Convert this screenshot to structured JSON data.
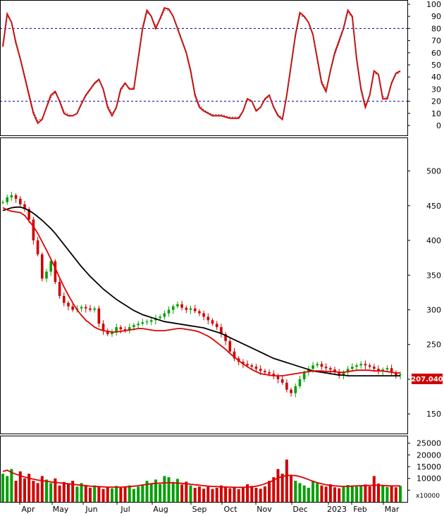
{
  "chart_data": {
    "type": "stock-chart",
    "months": [
      "Apr",
      "May",
      "Jun",
      "Jul",
      "Aug",
      "Sep",
      "Oct",
      "Nov",
      "Dec",
      "2023",
      "Feb",
      "Mar"
    ],
    "last_price_label": "207.040",
    "volume_unit_label": "x10000",
    "oscillator": {
      "ylim": [
        0,
        100
      ],
      "ticks": [
        0,
        10,
        20,
        30,
        40,
        50,
        60,
        70,
        80,
        90,
        100
      ],
      "levels": [
        20,
        80
      ],
      "series": [
        {
          "name": "K",
          "color": "#e00000",
          "values": [
            65,
            92,
            85,
            68,
            55,
            40,
            25,
            10,
            2,
            5,
            15,
            25,
            28,
            20,
            10,
            8,
            8,
            10,
            18,
            25,
            30,
            35,
            38,
            30,
            15,
            8,
            15,
            30,
            35,
            30,
            30,
            55,
            80,
            95,
            90,
            80,
            88,
            97,
            96,
            90,
            80,
            70,
            60,
            45,
            25,
            15,
            12,
            10,
            8,
            8,
            8,
            7,
            6,
            6,
            6,
            12,
            22,
            20,
            12,
            15,
            22,
            25,
            15,
            8,
            5,
            25,
            50,
            75,
            93,
            90,
            85,
            75,
            55,
            35,
            28,
            45,
            60,
            70,
            80,
            95,
            90,
            55,
            30,
            15,
            25,
            45,
            42,
            22,
            22,
            35,
            43,
            45
          ]
        },
        {
          "name": "D",
          "color": "#e00000",
          "dash": "2,2",
          "values": [
            68,
            90,
            86,
            70,
            56,
            42,
            27,
            12,
            4,
            6,
            14,
            23,
            27,
            21,
            12,
            9,
            8,
            10,
            17,
            24,
            29,
            34,
            37,
            31,
            17,
            10,
            14,
            28,
            34,
            31,
            31,
            53,
            78,
            93,
            90,
            82,
            87,
            95,
            95,
            90,
            81,
            71,
            61,
            47,
            27,
            17,
            13,
            11,
            9,
            9,
            9,
            8,
            7,
            7,
            7,
            12,
            21,
            20,
            13,
            15,
            21,
            24,
            16,
            9,
            6,
            24,
            48,
            73,
            91,
            89,
            85,
            76,
            57,
            37,
            30,
            44,
            58,
            68,
            79,
            93,
            89,
            57,
            32,
            17,
            24,
            43,
            42,
            24,
            23,
            34,
            42,
            44
          ]
        }
      ]
    },
    "price": {
      "ylim": [
        135,
        530
      ],
      "ticks": [
        150,
        200,
        250,
        300,
        350,
        400,
        450,
        500
      ],
      "candles": [
        455,
        462,
        465,
        460,
        452,
        445,
        430,
        400,
        380,
        345,
        355,
        370,
        340,
        320,
        310,
        305,
        300,
        302,
        304,
        302,
        300,
        302,
        280,
        270,
        265,
        268,
        275,
        272,
        270,
        275,
        278,
        280,
        282,
        283,
        285,
        288,
        290,
        295,
        300,
        305,
        308,
        303,
        300,
        302,
        298,
        295,
        290,
        285,
        280,
        275,
        265,
        255,
        240,
        230,
        225,
        222,
        220,
        218,
        215,
        212,
        210,
        208,
        205,
        200,
        195,
        185,
        180,
        190,
        200,
        210,
        215,
        220,
        222,
        218,
        216,
        214,
        210,
        205,
        210,
        215,
        218,
        220,
        222,
        220,
        218,
        215,
        212,
        214,
        216,
        210,
        206,
        207
      ],
      "ma_short": [
        447,
        444,
        442,
        441,
        440,
        436,
        428,
        420,
        410,
        398,
        386,
        373,
        360,
        346,
        333,
        321,
        310,
        300,
        292,
        285,
        280,
        275,
        272,
        270,
        269,
        268,
        268,
        269,
        270,
        271,
        272,
        273,
        273,
        272,
        271,
        270,
        270,
        270,
        271,
        272,
        273,
        273,
        272,
        271,
        270,
        268,
        265,
        262,
        258,
        253,
        248,
        243,
        237,
        232,
        227,
        222,
        218,
        214,
        211,
        208,
        207,
        206,
        205,
        205,
        205,
        206,
        207,
        208,
        209,
        210,
        211,
        212,
        212,
        212,
        211,
        211,
        211,
        210,
        210,
        211,
        212,
        213,
        213,
        213,
        213,
        212,
        212,
        212,
        211,
        210,
        209,
        209
      ],
      "ma_long": [
        443,
        445,
        447,
        448,
        448,
        446,
        443,
        439,
        434,
        429,
        423,
        417,
        410,
        402,
        394,
        386,
        378,
        370,
        362,
        355,
        348,
        342,
        336,
        330,
        325,
        320,
        315,
        311,
        307,
        303,
        299,
        296,
        293,
        291,
        289,
        287,
        285,
        283,
        282,
        281,
        280,
        279,
        278,
        277,
        276,
        275,
        274,
        272,
        270,
        268,
        266,
        263,
        260,
        257,
        254,
        251,
        248,
        245,
        242,
        239,
        236,
        233,
        230,
        228,
        226,
        224,
        222,
        220,
        218,
        216,
        214,
        212,
        211,
        210,
        209,
        208,
        207,
        206,
        206,
        205,
        205,
        205,
        205,
        205,
        205,
        205,
        205,
        205,
        205,
        205,
        205,
        205
      ]
    },
    "volume": {
      "ylim": [
        0,
        27000
      ],
      "ticks": [
        5000,
        10000,
        15000,
        20000,
        25000
      ],
      "bars": [
        12000,
        11000,
        14000,
        9000,
        13000,
        10000,
        12000,
        9000,
        8000,
        11000,
        9500,
        8000,
        10000,
        7000,
        8500,
        7500,
        9000,
        6500,
        8000,
        7200,
        6000,
        7000,
        6500,
        5500,
        6200,
        5800,
        6800,
        6000,
        6400,
        7000,
        5500,
        6500,
        7200,
        9000,
        8000,
        9500,
        7600,
        11000,
        10500,
        8500,
        9800,
        7400,
        8600,
        7000,
        6000,
        6500,
        5600,
        6400,
        5500,
        6000,
        7000,
        6600,
        5800,
        6000,
        5400,
        6200,
        7500,
        6800,
        6000,
        5600,
        6600,
        9000,
        10500,
        14000,
        12000,
        18000,
        11000,
        9000,
        8000,
        7000,
        6000,
        9000,
        8000,
        7000,
        6500,
        7500,
        6200,
        5800,
        6400,
        7200,
        7000,
        6500,
        6800,
        7400,
        6600,
        11000,
        7800,
        6800,
        6400,
        7000,
        6200,
        6800
      ],
      "ma": [
        13000,
        13500,
        12500,
        11800,
        11200,
        10600,
        10100,
        9700,
        9300,
        9000,
        8800,
        8500,
        8300,
        8100,
        7900,
        7700,
        7500,
        7300,
        7100,
        6900,
        6700,
        6600,
        6500,
        6400,
        6300,
        6300,
        6300,
        6300,
        6400,
        6500,
        6700,
        6900,
        7200,
        7500,
        7700,
        7900,
        8000,
        8100,
        8200,
        8100,
        8000,
        7900,
        7700,
        7500,
        7300,
        7100,
        6900,
        6700,
        6600,
        6500,
        6400,
        6300,
        6300,
        6200,
        6200,
        6200,
        6300,
        6400,
        6700,
        7100,
        7700,
        8400,
        9300,
        10200,
        10800,
        11200,
        11300,
        11200,
        10800,
        10200,
        9500,
        8800,
        8200,
        7700,
        7300,
        7000,
        6800,
        6700,
        6600,
        6600,
        6700,
        6800,
        6900,
        7000,
        7000,
        7100,
        7100,
        7000,
        6900,
        6800,
        6800,
        6800
      ]
    }
  }
}
